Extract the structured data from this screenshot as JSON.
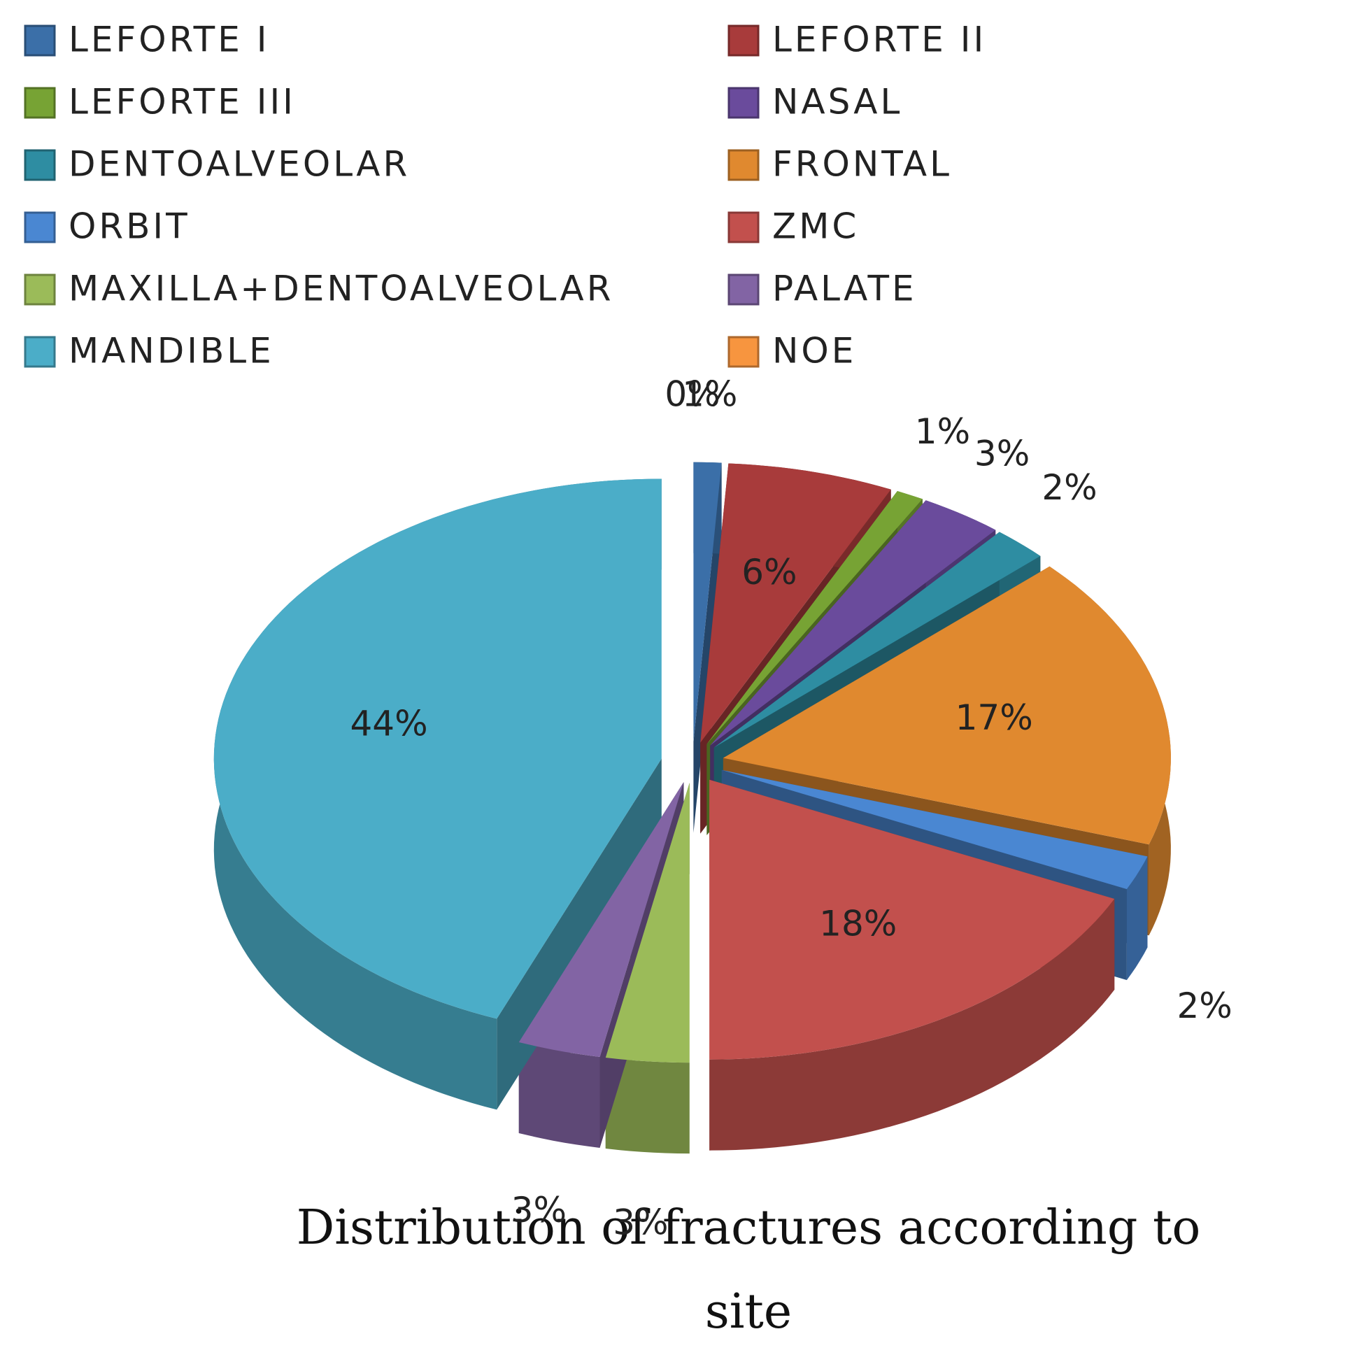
{
  "chart_data": {
    "type": "pie",
    "title": "Distribution of fractures according to site",
    "categories": [
      "LEFORTE I",
      "LEFORTE II",
      "LEFORTE III",
      "NASAL",
      "DENTOALVEOLAR",
      "FRONTAL",
      "ORBIT",
      "ZMC",
      "MAXILLA+DENTOALVEOLAR",
      "PALATE",
      "MANDIBLE",
      "NOE"
    ],
    "values": [
      1,
      6,
      1,
      3,
      2,
      17,
      2,
      18,
      3,
      3,
      44,
      0
    ],
    "value_labels": [
      "1%",
      "6%",
      "1%",
      "3%",
      "2%",
      "17%",
      "2%",
      "18%",
      "3%",
      "3%",
      "44%",
      "0%"
    ],
    "colors": [
      "#3b6fa8",
      "#a83b3b",
      "#77a334",
      "#6a4b9c",
      "#2e8da2",
      "#e0892f",
      "#4a87d2",
      "#c2504d",
      "#9bbb59",
      "#8264a4",
      "#4badc8",
      "#f7953f"
    ],
    "legend": "top"
  }
}
